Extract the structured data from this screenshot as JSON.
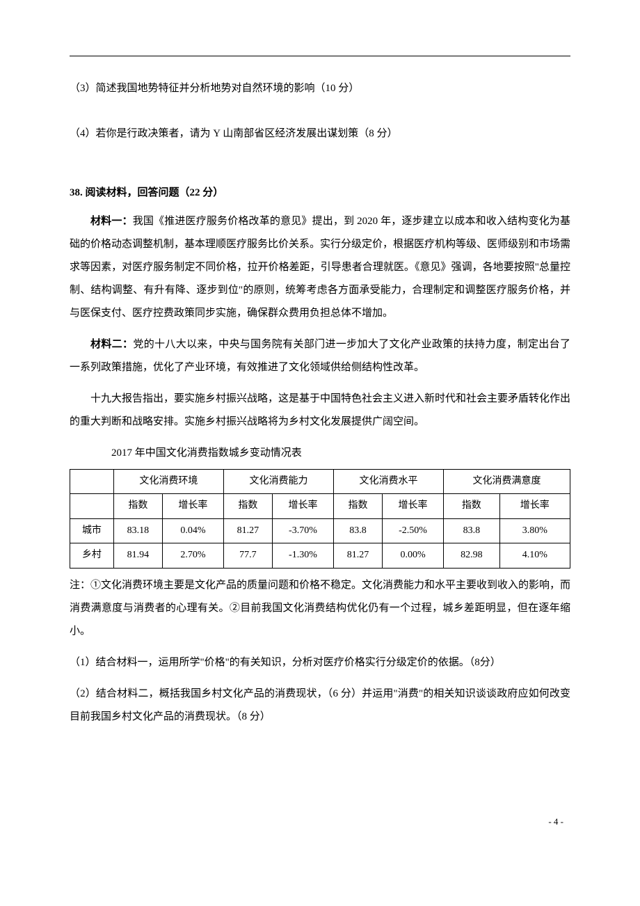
{
  "q37_3": "（3）简述我国地势特征并分析地势对自然环境的影响（10 分）",
  "q37_4": "（4）若你是行政决策者，请为 Y 山南部省区经济发展出谋划策（8 分）",
  "q38_title": "38. 阅读材料，回答问题（22 分）",
  "m1_label": "材料一：",
  "m1_text": "我国《推进医疗服务价格改革的意见》提出，到 2020 年，逐步建立以成本和收入结构变化为基础的价格动态调整机制，基本理顺医疗服务比价关系。实行分级定价，根据医疗机构等级、医师级别和市场需求等因素，对医疗服务制定不同价格，拉开价格差距，引导患者合理就医。《意见》强调，各地要按照\"总量控制、结构调整、有升有降、逐步到位\"的原则，统筹考虑各方面承受能力，合理制定和调整医疗服务价格，并与医保支付、医疗控费政策同步实施，确保群众费用负担总体不增加。",
  "m2_label": "材料二：",
  "m2_p1": "党的十八大以来，中央与国务院有关部门进一步加大了文化产业政策的扶持力度，制定出台了一系列政策措施，优化了产业环境，有效推进了文化领域供给侧结构性改革。",
  "m2_p2": "十九大报告指出，要实施乡村振兴战略，这是基于中国特色社会主义进入新时代和社会主要矛盾转化作出的重大判断和战略安排。实施乡村振兴战略将为乡村文化发展提供广阔空间。",
  "table_caption": "2017 年中国文化消费指数城乡变动情况表",
  "table": {
    "group_headers": [
      "",
      "文化消费环境",
      "文化消费能力",
      "文化消费水平",
      "文化消费满意度"
    ],
    "sub_headers": [
      "",
      "指数",
      "增长率",
      "指数",
      "增长率",
      "指数",
      "增长率",
      "指数",
      "增长率"
    ],
    "rows": [
      [
        "城市",
        "83.18",
        "0.04%",
        "81.27",
        "-3.70%",
        "83.8",
        "-2.50%",
        "83.8",
        "3.80%"
      ],
      [
        "乡村",
        "81.94",
        "2.70%",
        "77.7",
        "-1.30%",
        "81.27",
        "0.00%",
        "82.98",
        "4.10%"
      ]
    ]
  },
  "note": "注：①文化消费环境主要是文化产品的质量问题和价格不稳定。文化消费能力和水平主要收到收入的影响，而消费满意度与消费者的心理有关。②目前我国文化消费结构优化仍有一个过程，城乡差距明显，但在逐年缩小。",
  "q38_1": "（1）结合材料一，运用所学\"价格\"的有关知识，分析对医疗价格实行分级定价的依据。（8分）",
  "q38_2": "（2）结合材料二，概括我国乡村文化产品的消费现状，（6 分）并运用\"消费\"的相关知识谈谈政府应如何改变目前我国乡村文化产品的消费现状。（8 分）",
  "page_number": "- 4 -"
}
